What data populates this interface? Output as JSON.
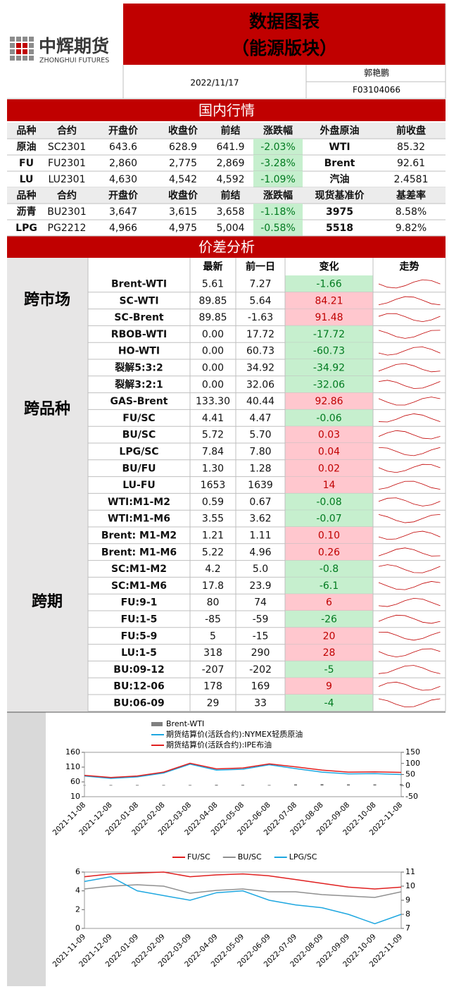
{
  "header": {
    "logo_cn": "中辉期货",
    "logo_en": "ZHONGHUI FUTURES",
    "title": "数据图表",
    "subtitle": "（能源版块）",
    "date": "2022/11/17",
    "author": "郭艳鹏",
    "license": "F03104066"
  },
  "market": {
    "title": "国内行情",
    "header1": [
      "品种",
      "合约",
      "开盘价",
      "收盘价",
      "前结",
      "涨跌幅",
      "外盘原油",
      "前收盘"
    ],
    "rows1": [
      [
        "原油",
        "SC2301",
        "643.6",
        "628.9",
        "641.9",
        "-2.03%",
        "WTI",
        "85.32"
      ],
      [
        "FU",
        "FU2301",
        "2,860",
        "2,775",
        "2,869",
        "-3.28%",
        "Brent",
        "92.61"
      ],
      [
        "LU",
        "LU2301",
        "4,630",
        "4,542",
        "4,592",
        "-1.09%",
        "汽油",
        "2.4581"
      ]
    ],
    "header2": [
      "品种",
      "合约",
      "开盘价",
      "收盘价",
      "前结",
      "涨跌幅",
      "现货基准价",
      "基差率"
    ],
    "rows2": [
      [
        "沥青",
        "BU2301",
        "3,647",
        "3,615",
        "3,658",
        "-1.18%",
        "3975",
        "8.58%"
      ],
      [
        "LPG",
        "PG2212",
        "4,966",
        "4,975",
        "5,004",
        "-0.58%",
        "5518",
        "9.82%"
      ]
    ]
  },
  "spread": {
    "title": "价差分析",
    "headers": [
      "最新",
      "前一日",
      "变化",
      "走势"
    ],
    "groups": [
      {
        "name": "跨市场",
        "rows": [
          [
            "Brent-WTI",
            "5.61",
            "7.27",
            "-1.66"
          ],
          [
            "SC-WTI",
            "89.85",
            "5.64",
            "84.21"
          ],
          [
            "SC-Brent",
            "89.85",
            "-1.63",
            "91.48"
          ]
        ]
      },
      {
        "name": "跨品种",
        "rows": [
          [
            "RBOB-WTI",
            "0.00",
            "17.72",
            "-17.72"
          ],
          [
            "HO-WTI",
            "0.00",
            "60.73",
            "-60.73"
          ],
          [
            "裂解5:3:2",
            "0.00",
            "34.92",
            "-34.92"
          ],
          [
            "裂解3:2:1",
            "0.00",
            "32.06",
            "-32.06"
          ],
          [
            "GAS-Brent",
            "133.30",
            "40.44",
            "92.86"
          ],
          [
            "FU/SC",
            "4.41",
            "4.47",
            "-0.06"
          ],
          [
            "BU/SC",
            "5.72",
            "5.70",
            "0.03"
          ],
          [
            "LPG/SC",
            "7.84",
            "7.80",
            "0.04"
          ],
          [
            "BU/FU",
            "1.30",
            "1.28",
            "0.02"
          ],
          [
            "LU-FU",
            "1653",
            "1639",
            "14"
          ]
        ]
      },
      {
        "name": "跨期",
        "rows": [
          [
            "WTI:M1-M2",
            "0.59",
            "0.67",
            "-0.08"
          ],
          [
            "WTI:M1-M6",
            "3.55",
            "3.62",
            "-0.07"
          ],
          [
            "Brent: M1-M2",
            "1.21",
            "1.11",
            "0.10"
          ],
          [
            "Brent: M1-M6",
            "5.22",
            "4.96",
            "0.26"
          ],
          [
            "SC:M1-M2",
            "4.2",
            "5.0",
            "-0.8"
          ],
          [
            "SC:M1-M6",
            "17.8",
            "23.9",
            "-6.1"
          ],
          [
            "FU:9-1",
            "80",
            "74",
            "6"
          ],
          [
            "FU:1-5",
            "-85",
            "-59",
            "-26"
          ],
          [
            "FU:5-9",
            "5",
            "-15",
            "20"
          ],
          [
            "LU:1-5",
            "318",
            "290",
            "28"
          ],
          [
            "BU:09-12",
            "-207",
            "-202",
            "-5"
          ],
          [
            "BU:12-06",
            "178",
            "169",
            "9"
          ],
          [
            "BU:06-09",
            "29",
            "33",
            "-4"
          ]
        ]
      }
    ]
  },
  "chart_data": [
    {
      "type": "line",
      "legend": "top",
      "legend_layout": "column",
      "x": [
        "2021-11-08",
        "2021-12-08",
        "2022-01-08",
        "2022-02-08",
        "2022-03-08",
        "2022-04-08",
        "2022-05-08",
        "2022-06-08",
        "2022-07-08",
        "2022-08-08",
        "2022-09-08",
        "2022-10-08",
        "2022-11-08"
      ],
      "ylim": [
        10,
        160
      ],
      "yticks": [
        10,
        60,
        110,
        160
      ],
      "y2lim": [
        -50,
        150
      ],
      "y2ticks": [
        -50,
        0,
        50,
        100,
        150
      ],
      "series": [
        {
          "name": "Brent-WTI",
          "type": "bar",
          "axis": "y2",
          "color": "#808080",
          "values": [
            2,
            3,
            3,
            3,
            3,
            4,
            4,
            3,
            6,
            7,
            6,
            6,
            7
          ]
        },
        {
          "name": "期货结算价(活跃合约):NYMEX轻质原油",
          "color": "#1ea7e0",
          "values": [
            80,
            72,
            77,
            90,
            120,
            100,
            103,
            118,
            105,
            93,
            87,
            88,
            85
          ]
        },
        {
          "name": "期货结算价(活跃合约):IPE布油",
          "color": "#e02020",
          "values": [
            82,
            75,
            80,
            93,
            123,
            104,
            107,
            121,
            111,
            100,
            93,
            94,
            92
          ]
        }
      ]
    },
    {
      "type": "line",
      "legend": "top",
      "legend_layout": "row",
      "x": [
        "2021-11-09",
        "2021-12-09",
        "2022-01-09",
        "2022-02-09",
        "2022-03-09",
        "2022-04-09",
        "2022-05-09",
        "2022-06-09",
        "2022-07-09",
        "2022-08-09",
        "2022-09-09",
        "2022-10-09",
        "2022-11-09"
      ],
      "ylim": [
        0,
        6
      ],
      "yticks": [
        0,
        2,
        4,
        6
      ],
      "y2lim": [
        7,
        11
      ],
      "y2ticks": [
        7,
        8,
        9,
        10,
        11
      ],
      "series": [
        {
          "name": "FU/SC",
          "color": "#e02020",
          "values": [
            5.5,
            5.8,
            5.9,
            6,
            5.5,
            5.7,
            5.8,
            5.6,
            5.2,
            4.8,
            4.4,
            4.2,
            4.4
          ]
        },
        {
          "name": "BU/SC",
          "axis": "y2",
          "color": "#909090",
          "values": [
            9.8,
            10,
            10.1,
            10,
            9.5,
            9.7,
            9.8,
            9.6,
            9.6,
            9.4,
            9.3,
            9.2,
            9.6
          ]
        },
        {
          "name": "LPG/SC",
          "color": "#1ea7e0",
          "values": [
            5,
            5.5,
            4,
            3.5,
            3,
            3.8,
            4,
            3,
            2.5,
            2.2,
            1.5,
            0.5,
            1.5
          ]
        }
      ]
    }
  ]
}
